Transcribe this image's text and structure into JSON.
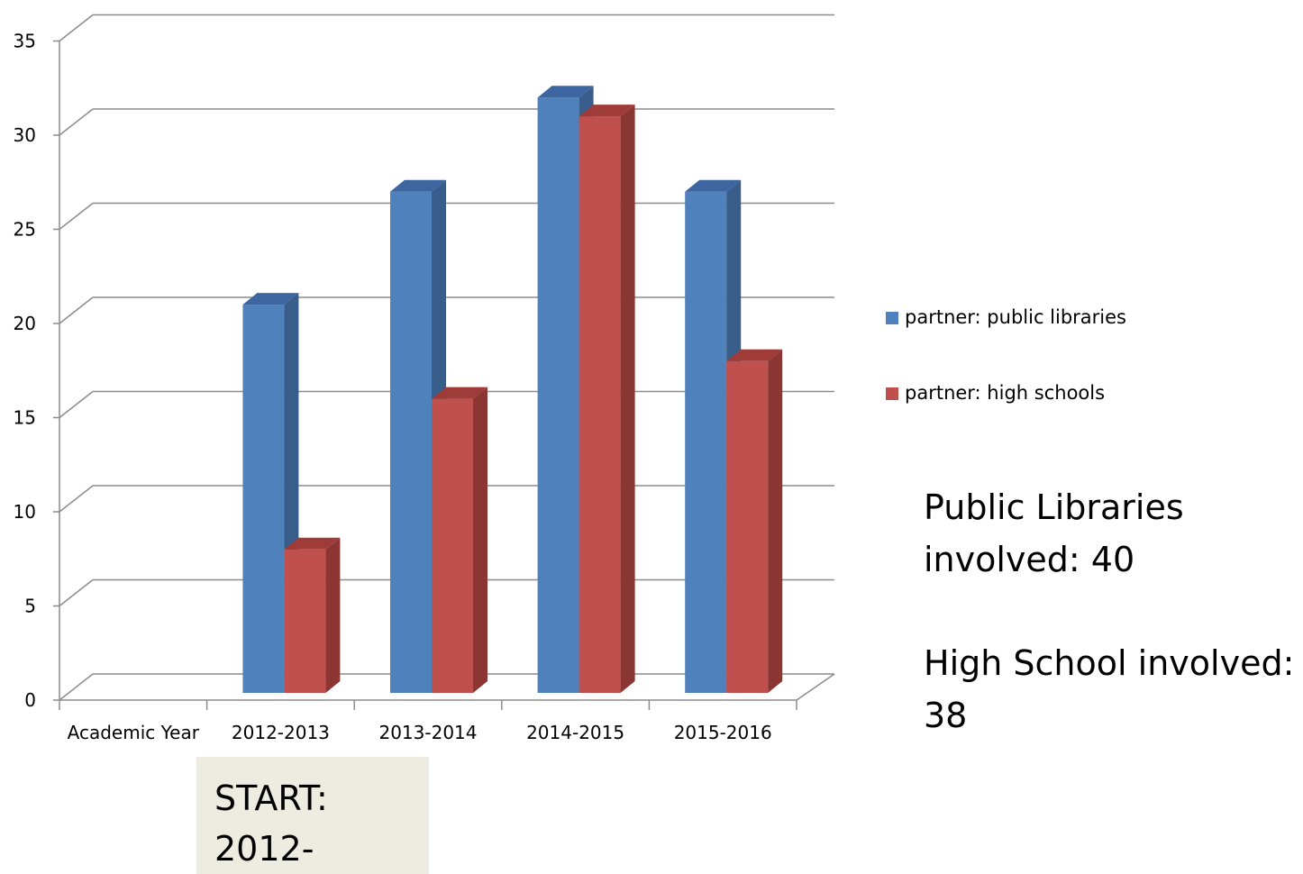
{
  "chart_data": {
    "type": "bar",
    "style": "3d-clustered-column",
    "categories": [
      "Academic Year",
      "2012-2013",
      "2013-2014",
      "2014-2015",
      "2015-2016"
    ],
    "series": [
      {
        "name": "partner: public libraries",
        "color": "#4f81bd",
        "side_color": "#385d8a",
        "top_color": "#3d66a0",
        "values": [
          null,
          21,
          27,
          32,
          27
        ]
      },
      {
        "name": "partner: high schools",
        "color": "#c0504d",
        "side_color": "#8c3634",
        "top_color": "#9f3b38",
        "values": [
          null,
          8,
          16,
          31,
          18
        ]
      }
    ],
    "y_ticks": [
      "0",
      "5",
      "10",
      "15",
      "20",
      "25",
      "30",
      "35"
    ],
    "ylim": [
      0,
      35
    ],
    "grid": true,
    "legend_position": "right",
    "title": "",
    "xlabel": "",
    "ylabel": ""
  },
  "legend": [
    {
      "label": "partner: public libraries",
      "color": "#4f81bd"
    },
    {
      "label": "partner: high schools",
      "color": "#c0504d"
    }
  ],
  "notes": {
    "public_libraries": "Public Libraries involved: 40",
    "high_schools": "High School involved: 38"
  },
  "start_box": {
    "line1": "START:",
    "line2": "2012-"
  }
}
